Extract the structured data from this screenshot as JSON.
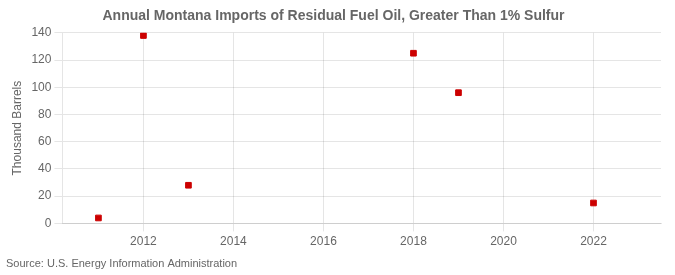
{
  "chart_data": {
    "type": "scatter",
    "title": "Annual Montana Imports of Residual Fuel Oil, Greater Than 1% Sulfur",
    "ylabel": "Thousand Barrels",
    "annotations": [
      "Source: U.S. Energy Information Administration"
    ],
    "x": [
      2011,
      2012,
      2013,
      2018,
      2019,
      2022
    ],
    "values": [
      4,
      138,
      28,
      125,
      96,
      15
    ],
    "color": "#cc0000",
    "marker": "square",
    "xlim": [
      2010.2,
      2023.5
    ],
    "xticks": [
      2012,
      2014,
      2016,
      2018,
      2020,
      2022
    ],
    "ylim": [
      0,
      140
    ],
    "yticks": [
      0,
      20,
      40,
      60,
      80,
      100,
      120,
      140
    ],
    "grid": true
  }
}
